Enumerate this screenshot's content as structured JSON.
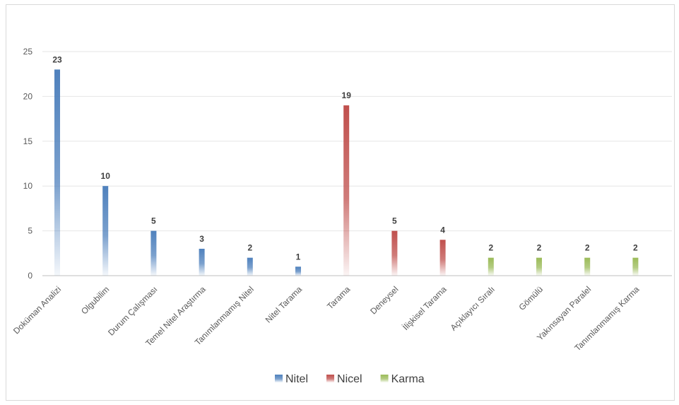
{
  "chart_data": {
    "type": "bar",
    "title": "",
    "xlabel": "",
    "ylabel": "",
    "ylim": [
      0,
      25
    ],
    "yticks": [
      0,
      5,
      10,
      15,
      20,
      25
    ],
    "grid": true,
    "legend_position": "bottom",
    "categories": [
      "Doküman Analizi",
      "Olgubilim",
      "Durum Çalışması",
      "Temel Nitel Araştırma",
      "Tanımlanmamış Nitel",
      "Nitel Tarama",
      "Tarama",
      "Deneysel",
      "İlişkisel Tarama",
      "Açıklayıcı Sıralı",
      "Gömülü",
      "Yakınsayan Paralel",
      "Tanımlanmamış Karma"
    ],
    "series": [
      {
        "name": "Nitel",
        "color": "#4f81bd",
        "values": [
          23,
          10,
          5,
          3,
          2,
          1,
          null,
          null,
          null,
          null,
          null,
          null,
          null
        ]
      },
      {
        "name": "Nicel",
        "color": "#c0504d",
        "values": [
          null,
          null,
          null,
          null,
          null,
          null,
          19,
          5,
          4,
          null,
          null,
          null,
          null
        ]
      },
      {
        "name": "Karma",
        "color": "#9bbb59",
        "values": [
          null,
          null,
          null,
          null,
          null,
          null,
          null,
          null,
          null,
          2,
          2,
          2,
          2
        ]
      }
    ]
  }
}
